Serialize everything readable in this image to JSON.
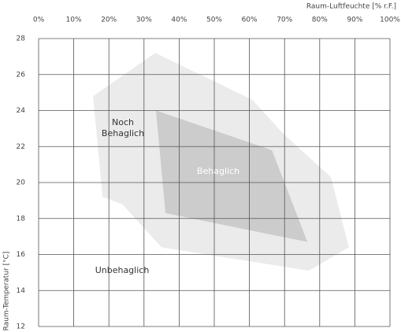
{
  "chart_data": {
    "type": "polygon",
    "x_label": "Raum-Luftfeuchte [% r.F.]",
    "y_label": "Raum-Temperatur [°C]",
    "xlim": [
      0,
      100
    ],
    "xticks": [
      {
        "value": 0,
        "label": "0%"
      },
      {
        "value": 10,
        "label": "10%"
      },
      {
        "value": 20,
        "label": "20%"
      },
      {
        "value": 30,
        "label": "30%"
      },
      {
        "value": 40,
        "label": "40%"
      },
      {
        "value": 50,
        "label": "50%"
      },
      {
        "value": 60,
        "label": "60%"
      },
      {
        "value": 70,
        "label": "70%"
      },
      {
        "value": 80,
        "label": "80%"
      },
      {
        "value": 90,
        "label": "90%"
      },
      {
        "value": 100,
        "label": "100%"
      }
    ],
    "ylim": [
      12,
      28
    ],
    "yticks": [
      12,
      14,
      16,
      18,
      20,
      22,
      24,
      26,
      28
    ],
    "grid": true,
    "series": [
      {
        "name": "Noch\nBehaglich",
        "color": "#ebebeb",
        "x": [
          15.5,
          33.2,
          60.8,
          69.7,
          83.2,
          88.3,
          76.9,
          35.0,
          23.8,
          18.2
        ],
        "y": [
          24.8,
          27.2,
          24.6,
          22.7,
          20.3,
          16.4,
          15.1,
          16.4,
          18.8,
          19.2
        ]
      },
      {
        "name": "Behaglich",
        "color": "#cccccc",
        "x": [
          33.4,
          66.4,
          76.5,
          36.1
        ],
        "y": [
          24.0,
          21.8,
          16.7,
          18.3
        ]
      }
    ],
    "annotations": [
      "Unbehaglich"
    ]
  }
}
